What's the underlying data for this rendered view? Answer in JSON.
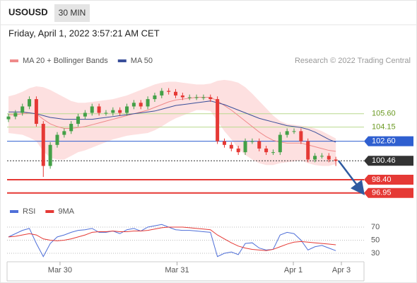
{
  "header": {
    "symbol": "USOUSD",
    "interval": "30 MIN",
    "timestamp": "Friday, April 1, 2022 3:57:21 AM CET"
  },
  "chart_data": [
    {
      "type": "candlestick",
      "annotation": "Research © 2022 Trading Central",
      "xlim": [
        0,
        48
      ],
      "xticks": [
        {
          "value": 7.4,
          "label": "Mar 30"
        },
        {
          "value": 24.2,
          "label": "Mar 31"
        },
        {
          "value": 40.9,
          "label": "Apr 1"
        },
        {
          "value": 47.8,
          "label": "Apr 3"
        }
      ],
      "ylim": [
        96,
        110.3
      ],
      "up_color": "#43a047",
      "down_color": "#e53935",
      "open": [
        105.0,
        105.3,
        105.7,
        106.4,
        107.2,
        104.5,
        99.9,
        102.2,
        103.3,
        103.7,
        104.5,
        105.3,
        105.7,
        106.4,
        105.7,
        105.7,
        106.0,
        105.7,
        106.4,
        106.8,
        106.4,
        107.2,
        107.6,
        108.1,
        108.0,
        107.6,
        107.4,
        107.4,
        107.4,
        107.4,
        107.2,
        102.6,
        102.2,
        101.8,
        101.4,
        102.6,
        102.6,
        101.8,
        101.4,
        101.4,
        103.3,
        103.7,
        103.7,
        102.6,
        100.6,
        101.0,
        101.0,
        100.6
      ],
      "high": [
        105.6,
        106.0,
        106.7,
        107.5,
        107.5,
        104.8,
        102.5,
        103.6,
        104.0,
        104.8,
        105.6,
        106.0,
        106.7,
        106.7,
        106.0,
        106.3,
        106.3,
        106.7,
        107.1,
        107.1,
        107.5,
        107.9,
        108.4,
        108.4,
        108.3,
        107.9,
        107.7,
        107.7,
        107.7,
        107.7,
        107.5,
        102.9,
        102.5,
        102.1,
        102.9,
        102.9,
        102.9,
        102.1,
        101.7,
        103.6,
        104.0,
        104.0,
        104.0,
        102.9,
        101.3,
        101.3,
        101.3,
        100.9
      ],
      "low": [
        104.7,
        105.0,
        105.4,
        106.1,
        104.2,
        98.7,
        99.6,
        101.9,
        103.0,
        103.4,
        104.2,
        105.0,
        105.4,
        105.4,
        105.4,
        105.4,
        105.4,
        105.4,
        106.1,
        106.1,
        106.1,
        106.9,
        107.3,
        107.7,
        107.3,
        107.1,
        107.1,
        107.1,
        107.1,
        106.9,
        102.3,
        101.9,
        101.5,
        101.1,
        101.1,
        102.3,
        101.5,
        101.1,
        101.1,
        101.1,
        103.0,
        103.4,
        102.3,
        100.3,
        100.3,
        100.7,
        100.3,
        99.9
      ],
      "close": [
        105.3,
        105.7,
        106.4,
        107.2,
        104.5,
        99.9,
        102.2,
        103.3,
        103.7,
        104.5,
        105.3,
        105.7,
        106.4,
        105.7,
        105.7,
        106.0,
        105.7,
        106.4,
        106.8,
        106.4,
        107.2,
        107.6,
        108.1,
        108.0,
        107.6,
        107.4,
        107.4,
        107.4,
        107.4,
        107.2,
        102.6,
        102.2,
        101.8,
        101.4,
        102.6,
        102.6,
        101.8,
        101.4,
        101.4,
        103.3,
        103.7,
        103.7,
        102.6,
        100.6,
        101.0,
        101.0,
        100.6,
        100.46
      ],
      "series": [
        {
          "name": "MA 20 + Bollinger Bands",
          "color": "#ef8a8a",
          "band_color": "#fde0e0",
          "values": [
            105.5,
            105.5,
            105.6,
            105.7,
            105.6,
            105.0,
            104.5,
            104.2,
            104.0,
            104.0,
            104.1,
            104.2,
            104.4,
            104.6,
            104.8,
            105.0,
            105.2,
            105.4,
            105.6,
            105.8,
            106.0,
            106.3,
            106.6,
            106.9,
            107.1,
            107.2,
            107.3,
            107.4,
            107.4,
            107.4,
            107.0,
            106.5,
            106.0,
            105.4,
            104.8,
            104.2,
            103.6,
            103.1,
            102.7,
            102.5,
            102.4,
            102.4,
            102.4,
            102.2,
            102.0,
            101.8,
            101.6,
            101.5
          ],
          "upper": [
            107.5,
            107.7,
            108.0,
            108.4,
            108.6,
            108.5,
            108.2,
            107.8,
            107.4,
            107.0,
            106.8,
            106.8,
            106.9,
            107.0,
            107.1,
            107.2,
            107.4,
            107.6,
            107.9,
            108.2,
            108.5,
            108.8,
            109.0,
            109.1,
            109.1,
            109.0,
            108.9,
            108.8,
            108.8,
            108.9,
            109.2,
            109.3,
            109.2,
            109.0,
            108.5,
            107.8,
            107.0,
            106.2,
            105.4,
            104.8,
            104.5,
            104.4,
            104.3,
            104.2,
            104.0,
            103.7,
            103.3,
            102.9
          ],
          "lower": [
            103.5,
            103.4,
            103.3,
            103.0,
            102.6,
            101.5,
            100.8,
            100.6,
            100.6,
            101.0,
            101.4,
            101.6,
            101.9,
            102.2,
            102.5,
            102.8,
            103.0,
            103.2,
            103.3,
            103.4,
            103.5,
            103.8,
            104.2,
            104.7,
            105.1,
            105.4,
            105.7,
            106.0,
            106.0,
            105.9,
            104.8,
            103.7,
            102.8,
            101.8,
            101.1,
            100.6,
            100.2,
            100.0,
            100.0,
            100.2,
            100.3,
            100.4,
            100.5,
            100.2,
            100.0,
            99.9,
            99.9,
            100.1
          ]
        },
        {
          "name": "MA 50",
          "color": "#3a4f9a",
          "values": [
            105.8,
            105.8,
            105.8,
            105.7,
            105.6,
            105.4,
            105.2,
            105.1,
            105.0,
            105.0,
            105.0,
            105.0,
            105.0,
            105.1,
            105.2,
            105.3,
            105.4,
            105.5,
            105.6,
            105.7,
            105.8,
            105.9,
            106.1,
            106.3,
            106.5,
            106.6,
            106.7,
            106.8,
            106.9,
            107.0,
            106.8,
            106.6,
            106.3,
            106.0,
            105.7,
            105.4,
            105.1,
            104.9,
            104.7,
            104.5,
            104.3,
            104.2,
            104.1,
            103.9,
            103.6,
            103.2,
            102.8,
            102.5
          ]
        }
      ],
      "levels": [
        {
          "value": 105.6,
          "label": "105.60",
          "color": "#b9d98e",
          "text_color": "#6b9a22",
          "badge": false,
          "style": "solid"
        },
        {
          "value": 104.15,
          "label": "104.15",
          "color": "#b9d98e",
          "text_color": "#6b9a22",
          "badge": false,
          "style": "solid"
        },
        {
          "value": 102.6,
          "label": "102.60",
          "color": "#2f5fd0",
          "text_color": "#ffffff",
          "badge": true,
          "style": "solid"
        },
        {
          "value": 100.46,
          "label": "100.46",
          "color": "#333333",
          "text_color": "#ffffff",
          "badge": true,
          "style": "dotted"
        },
        {
          "value": 98.4,
          "label": "98.40",
          "color": "#e53935",
          "text_color": "#ffffff",
          "badge": true,
          "style": "thick"
        },
        {
          "value": 96.95,
          "label": "96.95",
          "color": "#e53935",
          "text_color": "#ffffff",
          "badge": true,
          "style": "thick"
        }
      ]
    },
    {
      "type": "line",
      "xlim": [
        0,
        48
      ],
      "ylim": [
        20,
        80
      ],
      "yticks": [
        70,
        50,
        30
      ],
      "series": [
        {
          "name": "RSI",
          "color": "#4f6fd8",
          "values": [
            55,
            60,
            65,
            68,
            45,
            25,
            45,
            55,
            58,
            62,
            65,
            66,
            68,
            62,
            62,
            64,
            60,
            66,
            68,
            64,
            70,
            72,
            74,
            70,
            66,
            65,
            65,
            64,
            63,
            62,
            25,
            30,
            32,
            28,
            45,
            46,
            38,
            35,
            36,
            58,
            62,
            60,
            50,
            35,
            40,
            42,
            38,
            34
          ]
        },
        {
          "name": "9MA",
          "color": "#e53935",
          "values": [
            55,
            56,
            58,
            60,
            58,
            52,
            50,
            49,
            50,
            52,
            55,
            58,
            62,
            63,
            63,
            64,
            63,
            63,
            64,
            64,
            65,
            67,
            69,
            70,
            70,
            70,
            69,
            68,
            67,
            66,
            58,
            52,
            46,
            41,
            38,
            36,
            35,
            34,
            36,
            40,
            44,
            47,
            48,
            47,
            46,
            45,
            44,
            43
          ]
        }
      ]
    }
  ]
}
